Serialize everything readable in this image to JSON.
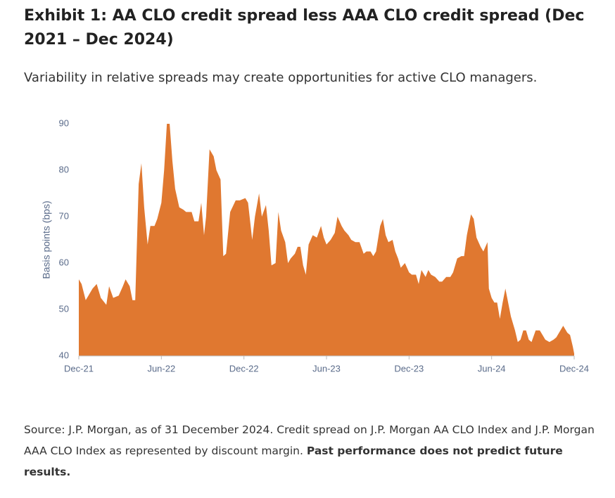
{
  "title": "Exhibit 1: AA CLO credit spread less AAA CLO credit spread (Dec 2021 – Dec 2024)",
  "subtitle": "Variability in relative spreads may create opportunities for active CLO managers.",
  "footer": {
    "text": "Source: J.P. Morgan, as of 31 December 2024. Credit spread on J.P. Morgan AA CLO Index and J.P. Morgan AAA CLO Index as represented by discount margin.",
    "bold": "Past performance does not predict future results."
  },
  "chart_data": {
    "type": "area",
    "y_label": "Basis points (bps)",
    "color": "#e07830",
    "xlim": [
      0,
      36
    ],
    "xticks": [
      {
        "value": 0,
        "label": "Dec-21"
      },
      {
        "value": 6,
        "label": "Jun-22"
      },
      {
        "value": 12,
        "label": "Dec-22"
      },
      {
        "value": 18,
        "label": "Jun-23"
      },
      {
        "value": 24,
        "label": "Dec-23"
      },
      {
        "value": 30,
        "label": "Jun-24"
      },
      {
        "value": 36,
        "label": "Dec-24"
      }
    ],
    "ylim": [
      40,
      90
    ],
    "yticks": [
      40,
      50,
      60,
      70,
      80,
      90
    ],
    "grid": false,
    "x": [
      0,
      0.2,
      0.5,
      0.7,
      1,
      1.3,
      1.6,
      2,
      2.2,
      2.5,
      2.9,
      3.2,
      3.4,
      3.7,
      3.9,
      4.1,
      4.35,
      4.55,
      4.75,
      5,
      5.2,
      5.5,
      5.7,
      6,
      6.2,
      6.4,
      6.6,
      6.8,
      7,
      7.3,
      7.6,
      7.8,
      8.2,
      8.4,
      8.7,
      8.9,
      9.1,
      9.25,
      9.5,
      9.8,
      10,
      10.3,
      10.5,
      10.7,
      11,
      11.4,
      11.7,
      12.1,
      12.3,
      12.6,
      12.8,
      13.1,
      13.3,
      13.6,
      13.8,
      14,
      14.3,
      14.5,
      14.7,
      15,
      15.2,
      15.4,
      15.7,
      15.9,
      16.1,
      16.3,
      16.5,
      16.7,
      17,
      17.3,
      17.6,
      17.8,
      18,
      18.3,
      18.6,
      18.8,
      19.1,
      19.3,
      19.6,
      19.8,
      20.1,
      20.4,
      20.7,
      20.9,
      21.2,
      21.4,
      21.6,
      21.9,
      22.1,
      22.3,
      22.5,
      22.8,
      23,
      23.2,
      23.4,
      23.7,
      24,
      24.2,
      24.5,
      24.7,
      24.9,
      25.2,
      25.4,
      25.6,
      25.9,
      26.2,
      26.4,
      26.7,
      27,
      27.2,
      27.5,
      27.8,
      28,
      28.2,
      28.5,
      28.7,
      28.9,
      29.2,
      29.4,
      29.7,
      29.8,
      30,
      30.2,
      30.4,
      30.6,
      30.8,
      31,
      31.2,
      31.4,
      31.7,
      31.9,
      32.1,
      32.3,
      32.5,
      32.7,
      32.9,
      33.2,
      33.5,
      33.7,
      33.9,
      34.2,
      34.5,
      34.7,
      35,
      35.2,
      35.5,
      35.7,
      35.9,
      36
    ],
    "values": [
      56.5,
      55.5,
      52,
      53,
      54.5,
      55.5,
      52.5,
      51,
      55,
      52.5,
      53,
      55,
      56.5,
      55,
      52,
      52,
      77,
      81.5,
      72,
      64,
      68,
      68,
      69.5,
      73,
      80,
      90,
      90,
      82,
      76,
      72,
      71.5,
      71,
      71,
      69,
      69,
      73,
      66,
      70,
      84.5,
      83,
      80,
      78,
      61.5,
      62,
      71,
      73.5,
      73.5,
      74,
      73,
      65,
      70,
      75,
      70,
      72.5,
      67,
      59.5,
      60,
      71,
      67,
      64.5,
      60,
      61,
      62,
      63.5,
      63.5,
      59.5,
      57.5,
      64,
      66,
      65.5,
      68,
      65.5,
      64,
      65,
      66.5,
      70,
      68,
      67,
      66,
      65,
      64.5,
      64.5,
      62,
      62.5,
      62.5,
      61.5,
      62.5,
      68,
      69.5,
      66,
      64.5,
      65,
      62.5,
      61,
      59,
      60,
      58,
      57.5,
      57.5,
      55.5,
      58.5,
      57,
      58.5,
      57.5,
      57,
      56,
      56,
      57,
      57,
      58,
      61,
      61.5,
      61.5,
      66,
      70.5,
      69.5,
      65.5,
      63.5,
      62.5,
      64.5,
      54.5,
      52.5,
      51.5,
      51.5,
      48,
      51.5,
      54.5,
      51.5,
      48.5,
      45.5,
      43,
      43.5,
      45.5,
      45.5,
      43.5,
      43,
      45.5,
      45.5,
      44.5,
      43.5,
      43,
      43.5,
      44,
      45.5,
      46.5,
      45,
      44.5,
      42,
      40.5
    ]
  }
}
